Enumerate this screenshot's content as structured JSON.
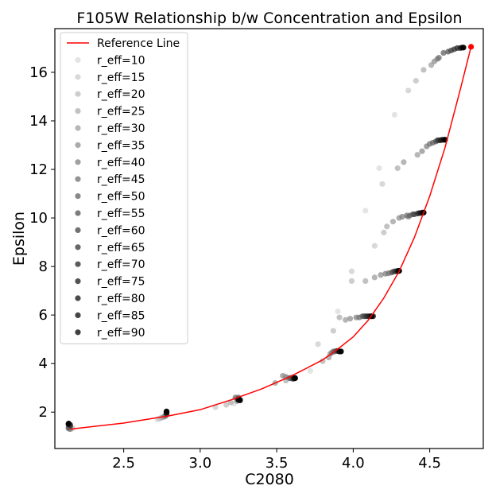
{
  "chart_data": {
    "type": "scatter",
    "title": "F105W Relationship b/w Concentration and Epsilon",
    "xlabel": "C2080",
    "ylabel": "Epsilon",
    "xlim": [
      2.05,
      4.85
    ],
    "ylim": [
      0.5,
      17.8
    ],
    "xticks": [
      2.5,
      3.0,
      3.5,
      4.0,
      4.5
    ],
    "xtick_labels": [
      "2.5",
      "3.0",
      "3.5",
      "4.0",
      "4.5"
    ],
    "yticks": [
      2,
      4,
      6,
      8,
      10,
      12,
      14,
      16
    ],
    "ytick_labels": [
      "2",
      "4",
      "6",
      "8",
      "10",
      "12",
      "14",
      "16"
    ],
    "legend_position": "top-left",
    "reference_line": {
      "name": "Reference Line",
      "color": "#ff0000",
      "x": [
        2.15,
        2.5,
        2.8,
        3.0,
        3.2,
        3.4,
        3.6,
        3.8,
        3.9,
        4.0,
        4.1,
        4.2,
        4.3,
        4.4,
        4.5,
        4.6,
        4.7,
        4.77
      ],
      "y": [
        1.3,
        1.55,
        1.85,
        2.1,
        2.5,
        2.95,
        3.5,
        4.15,
        4.6,
        5.1,
        5.8,
        6.7,
        7.8,
        9.2,
        10.9,
        12.9,
        15.3,
        17.05
      ]
    },
    "series": [
      {
        "name": "r_eff=10",
        "color_gray": 0.86,
        "x": [
          2.17,
          2.72,
          3.22,
          3.72,
          3.9,
          4.08,
          4.17,
          4.27
        ],
        "y": [
          1.35,
          1.7,
          2.35,
          3.7,
          6.15,
          10.3,
          12.05,
          14.25
        ]
      },
      {
        "name": "r_eff=15",
        "color_gray": 0.8,
        "x": [
          2.16,
          2.73,
          3.1,
          3.77,
          3.99,
          4.14,
          4.19,
          4.36
        ],
        "y": [
          1.33,
          1.72,
          2.2,
          4.8,
          7.8,
          8.85,
          11.4,
          15.25
        ]
      },
      {
        "name": "r_eff=20",
        "color_gray": 0.74,
        "x": [
          2.16,
          2.74,
          3.17,
          3.6,
          3.87,
          3.99,
          4.2,
          4.41
        ],
        "y": [
          1.32,
          1.75,
          2.3,
          3.45,
          5.35,
          7.4,
          9.4,
          15.65
        ]
      },
      {
        "name": "r_eff=25",
        "color_gray": 0.68,
        "x": [
          2.15,
          2.75,
          3.2,
          3.56,
          3.8,
          3.91,
          4.08,
          4.22,
          4.29,
          4.46
        ],
        "y": [
          1.31,
          1.78,
          2.4,
          3.3,
          4.1,
          5.9,
          7.4,
          9.65,
          12.05,
          16.1
        ]
      },
      {
        "name": "r_eff=30",
        "color_gray": 0.62,
        "x": [
          2.15,
          2.76,
          3.24,
          3.49,
          3.84,
          3.95,
          4.14,
          4.26,
          4.33,
          4.42,
          4.51
        ],
        "y": [
          1.3,
          1.8,
          2.45,
          3.2,
          4.25,
          5.8,
          7.55,
          9.85,
          12.3,
          12.6,
          16.3
        ]
      },
      {
        "name": "r_eff=35",
        "color_gray": 0.56,
        "x": [
          2.15,
          2.77,
          3.26,
          3.54,
          3.85,
          3.98,
          4.18,
          4.3,
          4.36,
          4.45,
          4.53
        ],
        "y": [
          1.3,
          1.82,
          2.5,
          3.5,
          4.4,
          5.85,
          7.65,
          10.0,
          10.05,
          12.75,
          16.45
        ]
      },
      {
        "name": "r_eff=40",
        "color_gray": 0.5,
        "x": [
          2.14,
          2.77,
          3.24,
          3.56,
          3.86,
          4.02,
          4.21,
          4.32,
          4.48,
          4.55
        ],
        "y": [
          1.32,
          1.85,
          2.55,
          3.45,
          4.45,
          5.9,
          7.7,
          10.05,
          12.95,
          16.55
        ]
      },
      {
        "name": "r_eff=45",
        "color_gray": 0.44,
        "x": [
          2.14,
          2.78,
          3.23,
          3.58,
          3.87,
          4.04,
          4.23,
          4.35,
          4.5,
          4.56
        ],
        "y": [
          1.35,
          1.88,
          2.6,
          3.4,
          4.5,
          5.9,
          7.72,
          10.1,
          13.05,
          16.6
        ]
      },
      {
        "name": "r_eff=50",
        "color_gray": 0.38,
        "x": [
          2.14,
          2.78,
          3.25,
          3.59,
          3.88,
          4.06,
          4.25,
          4.37,
          4.52,
          4.59
        ],
        "y": [
          1.38,
          1.9,
          2.6,
          3.4,
          4.5,
          5.95,
          7.75,
          10.1,
          13.1,
          16.8
        ]
      },
      {
        "name": "r_eff=55",
        "color_gray": 0.32,
        "x": [
          2.15,
          2.78,
          3.25,
          3.6,
          3.89,
          4.07,
          4.26,
          4.39,
          4.54,
          4.62
        ],
        "y": [
          1.42,
          1.92,
          2.55,
          3.38,
          4.52,
          5.95,
          7.78,
          10.15,
          13.15,
          16.85
        ]
      },
      {
        "name": "r_eff=60",
        "color_gray": 0.26,
        "x": [
          2.15,
          2.78,
          3.26,
          3.61,
          3.9,
          4.08,
          4.27,
          4.4,
          4.55,
          4.64
        ],
        "y": [
          1.45,
          1.95,
          2.5,
          3.38,
          4.52,
          5.95,
          7.8,
          10.15,
          13.2,
          16.9
        ]
      },
      {
        "name": "r_eff=65",
        "color_gray": 0.2,
        "x": [
          2.15,
          2.78,
          3.25,
          3.61,
          3.9,
          4.09,
          4.28,
          4.42,
          4.56,
          4.66
        ],
        "y": [
          1.48,
          1.95,
          2.52,
          3.38,
          4.52,
          5.95,
          7.8,
          10.18,
          13.2,
          16.95
        ]
      },
      {
        "name": "r_eff=70",
        "color_gray": 0.15,
        "x": [
          2.14,
          2.78,
          3.26,
          3.61,
          3.91,
          4.1,
          4.29,
          4.43,
          4.57,
          4.68
        ],
        "y": [
          1.5,
          1.98,
          2.5,
          3.4,
          4.5,
          5.95,
          7.8,
          10.2,
          13.2,
          17.0
        ]
      },
      {
        "name": "r_eff=75",
        "color_gray": 0.1,
        "x": [
          2.14,
          2.78,
          3.26,
          3.62,
          3.91,
          4.11,
          4.29,
          4.44,
          4.58,
          4.7
        ],
        "y": [
          1.5,
          2.0,
          2.48,
          3.4,
          4.5,
          5.95,
          7.82,
          10.2,
          13.22,
          17.0
        ]
      },
      {
        "name": "r_eff=80",
        "color_gray": 0.06,
        "x": [
          2.14,
          2.78,
          3.25,
          3.62,
          3.91,
          4.12,
          4.3,
          4.45,
          4.59,
          4.71
        ],
        "y": [
          1.52,
          2.0,
          2.5,
          3.4,
          4.5,
          5.95,
          7.82,
          10.22,
          13.22,
          17.02
        ]
      },
      {
        "name": "r_eff=85",
        "color_gray": 0.03,
        "x": [
          2.14,
          2.78,
          3.25,
          3.62,
          3.92,
          4.12,
          4.3,
          4.46,
          4.6,
          4.72
        ],
        "y": [
          1.52,
          2.02,
          2.5,
          3.4,
          4.5,
          5.95,
          7.82,
          10.22,
          13.22,
          17.02
        ]
      },
      {
        "name": "r_eff=90",
        "color_gray": 0.0,
        "x": [
          2.14,
          2.78,
          3.26,
          3.62,
          3.92,
          4.13,
          4.3,
          4.46,
          4.6,
          4.72
        ],
        "y": [
          1.53,
          2.03,
          2.5,
          3.4,
          4.5,
          5.95,
          7.82,
          10.22,
          13.22,
          17.02
        ]
      }
    ],
    "endpoint": {
      "x": 4.77,
      "y": 17.05,
      "color": "#ff0000"
    }
  }
}
